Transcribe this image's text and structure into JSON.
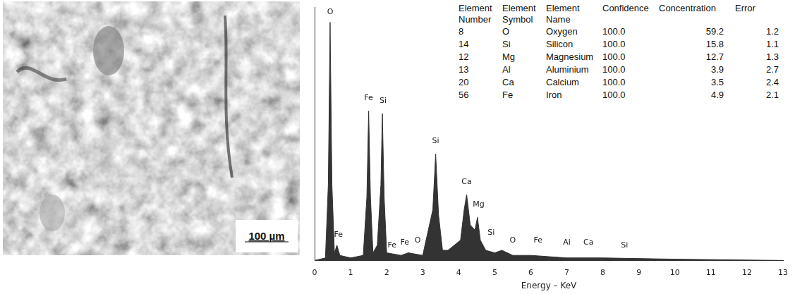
{
  "image": {
    "scale_bar": "100 µm"
  },
  "table": {
    "header": [
      "Element Number",
      "Element Symbol",
      "Element Name",
      "Confidence",
      "Concentration",
      "Error"
    ],
    "rows": [
      [
        "8",
        "O",
        "Oxygen",
        "100.0",
        "59.2",
        "1.2"
      ],
      [
        "14",
        "Si",
        "Silicon",
        "100.0",
        "15.8",
        "1.1"
      ],
      [
        "12",
        "Mg",
        "Magnesium",
        "100.0",
        "12.7",
        "1.3"
      ],
      [
        "13",
        "Al",
        "Aluminium",
        "100.0",
        "3.9",
        "2.7"
      ],
      [
        "20",
        "Ca",
        "Calcium",
        "100.0",
        "3.5",
        "2.4"
      ],
      [
        "56",
        "Fe",
        "Iron",
        "100.0",
        "4.9",
        "2.1"
      ]
    ]
  },
  "chart_data": {
    "type": "line",
    "x_label": "Energy – KeV",
    "x": [
      0,
      0.3,
      0.38,
      0.43,
      0.48,
      0.55,
      0.62,
      0.7,
      1.0,
      1.35,
      1.45,
      1.5,
      1.55,
      1.62,
      1.74,
      1.84,
      1.88,
      1.93,
      2.0,
      2.4,
      2.6,
      3.0,
      3.28,
      3.36,
      3.44,
      3.55,
      3.7,
      4.05,
      4.15,
      4.22,
      4.32,
      4.45,
      4.52,
      4.6,
      4.75,
      5.0,
      5.2,
      5.5,
      6.0,
      7.0,
      8.0,
      10.0,
      13
    ],
    "values": [
      0,
      1,
      30,
      94,
      30,
      3,
      6,
      2,
      1,
      2,
      25,
      59,
      25,
      3,
      6,
      30,
      58,
      25,
      3,
      2,
      3,
      2,
      20,
      42,
      18,
      4,
      4,
      8,
      20,
      26,
      14,
      12,
      17,
      8,
      4,
      3,
      4,
      2,
      2,
      1,
      1,
      0.5,
      0
    ],
    "color": "#333333",
    "xlim": [
      0,
      13
    ],
    "xticks": [
      0,
      1,
      2,
      3,
      4,
      5,
      6,
      7,
      8,
      9,
      10,
      11,
      12,
      13
    ],
    "ylim": [
      0,
      100
    ],
    "tick_labels": "x",
    "grid": false,
    "annotations": [
      {
        "text": "O",
        "x": 0.43,
        "y": 98
      },
      {
        "text": "Fe",
        "x": 0.66,
        "y": 10
      },
      {
        "text": "Fe",
        "x": 1.5,
        "y": 64
      },
      {
        "text": "Si",
        "x": 1.9,
        "y": 63
      },
      {
        "text": "Fe",
        "x": 2.15,
        "y": 6
      },
      {
        "text": "Fe",
        "x": 2.5,
        "y": 7
      },
      {
        "text": "O",
        "x": 2.86,
        "y": 8
      },
      {
        "text": "Si",
        "x": 3.36,
        "y": 47
      },
      {
        "text": "Ca",
        "x": 4.22,
        "y": 31
      },
      {
        "text": "Mg",
        "x": 4.55,
        "y": 22
      },
      {
        "text": "Si",
        "x": 4.9,
        "y": 11
      },
      {
        "text": "O",
        "x": 5.5,
        "y": 8
      },
      {
        "text": "Fe",
        "x": 6.2,
        "y": 8
      },
      {
        "text": "Al",
        "x": 7.0,
        "y": 7
      },
      {
        "text": "Ca",
        "x": 7.6,
        "y": 7
      },
      {
        "text": "Si",
        "x": 8.6,
        "y": 6
      }
    ]
  }
}
